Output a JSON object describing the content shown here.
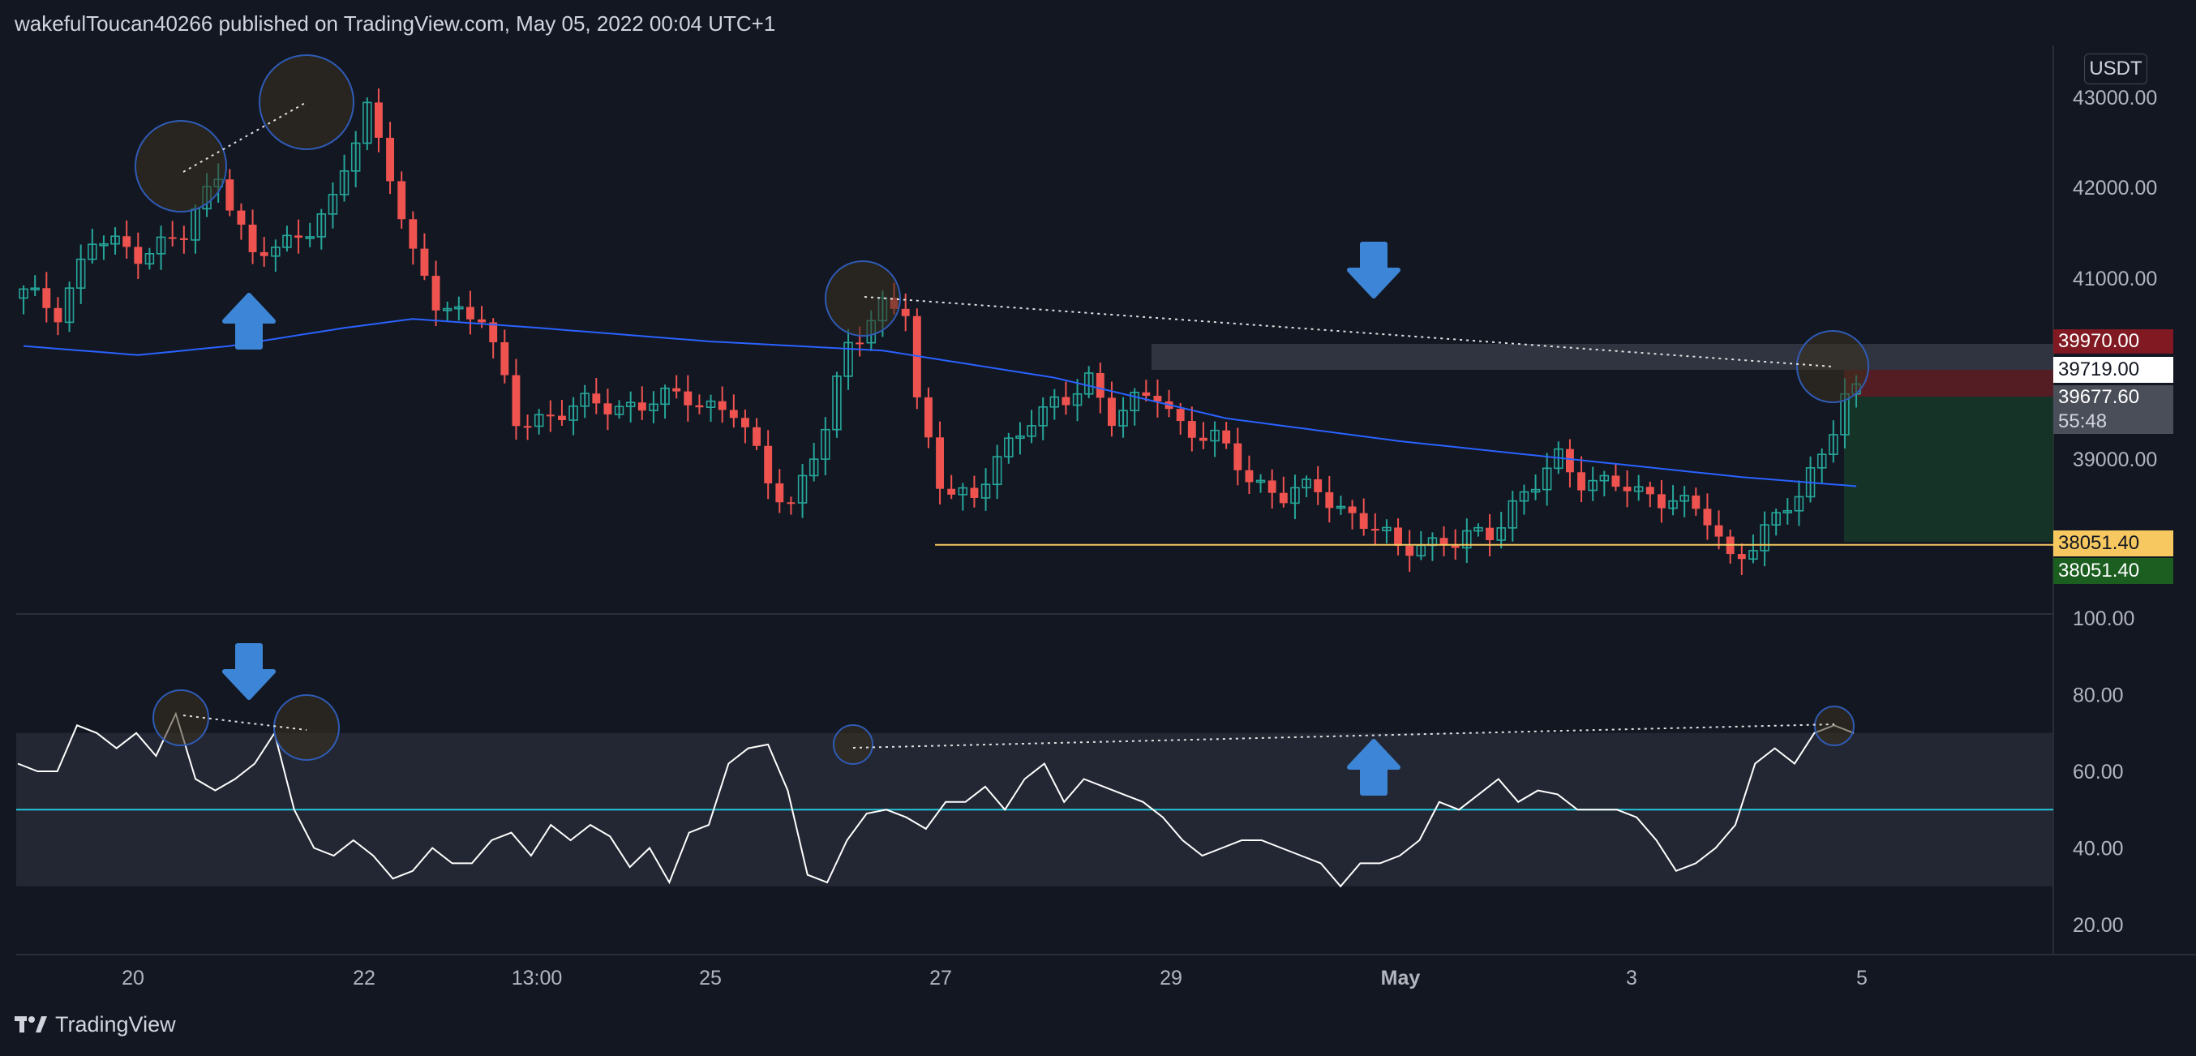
{
  "header": {
    "published_by": "wakefulToucan40266 published on TradingView.com, May 05, 2022 00:04 UTC+1"
  },
  "footer": {
    "brand": "TradingView"
  },
  "price_axis": {
    "unit": "USDT",
    "ticks": [
      "43000.00",
      "42000.00",
      "41000.00",
      "39000.00"
    ],
    "labels": {
      "stop": "39970.00",
      "entry": "39719.00",
      "current": "39677.60",
      "countdown": "55:48",
      "target_yellow": "38051.40",
      "target_green": "38051.40"
    }
  },
  "rsi_axis": {
    "ticks": [
      "100.00",
      "80.00",
      "60.00",
      "40.00",
      "20.00"
    ]
  },
  "time_axis": {
    "ticks": [
      "20",
      "22",
      "13:00",
      "25",
      "27",
      "29",
      "May",
      "3",
      "5"
    ]
  },
  "colors": {
    "background": "#131722",
    "up": "#26a69a",
    "down": "#ef5350",
    "ma": "#2962ff",
    "rsi": "#ffffff",
    "rsi_midline": "#26c6da",
    "arrows": "#3d85d6",
    "stop_zone": "#5b1e24",
    "target_zone": "#163628",
    "horizontal_support": "#f6c85f"
  },
  "chart_data": [
    {
      "type": "candlestick",
      "pair_unit": "USDT",
      "ylim": [
        37500,
        43500
      ],
      "yticks": [
        43000,
        42000,
        41000,
        39000
      ],
      "x_labels": [
        "20",
        "22",
        "13:00",
        "25",
        "27",
        "29",
        "May",
        "3",
        "5"
      ],
      "close_path": [
        [
          0,
          40820
        ],
        [
          3,
          40650
        ],
        [
          6,
          41400
        ],
        [
          10,
          41300
        ],
        [
          14,
          41450
        ],
        [
          17,
          42200
        ],
        [
          20,
          41200
        ],
        [
          23,
          41400
        ],
        [
          27,
          41800
        ],
        [
          30,
          42900
        ],
        [
          32,
          42200
        ],
        [
          34,
          41200
        ],
        [
          36,
          40700
        ],
        [
          40,
          40600
        ],
        [
          43,
          39400
        ],
        [
          46,
          39500
        ],
        [
          50,
          39600
        ],
        [
          54,
          39600
        ],
        [
          58,
          39700
        ],
        [
          62,
          39500
        ],
        [
          65,
          38800
        ],
        [
          67,
          38500
        ],
        [
          70,
          39300
        ],
        [
          72,
          40300
        ],
        [
          75,
          40700
        ],
        [
          77,
          40600
        ],
        [
          78,
          39600
        ],
        [
          80,
          38800
        ],
        [
          83,
          38500
        ],
        [
          85,
          39000
        ],
        [
          88,
          39500
        ],
        [
          91,
          39600
        ],
        [
          93,
          39900
        ],
        [
          95,
          39500
        ],
        [
          97,
          39600
        ],
        [
          99,
          39700
        ],
        [
          101,
          39400
        ],
        [
          104,
          39200
        ],
        [
          107,
          38800
        ],
        [
          110,
          38600
        ],
        [
          113,
          38650
        ],
        [
          117,
          38300
        ],
        [
          120,
          38000
        ],
        [
          122,
          38100
        ],
        [
          125,
          38050
        ],
        [
          128,
          38200
        ],
        [
          130,
          38500
        ],
        [
          132,
          38700
        ],
        [
          134,
          39000
        ],
        [
          136,
          38800
        ],
        [
          139,
          38700
        ],
        [
          141,
          38600
        ],
        [
          144,
          38600
        ],
        [
          147,
          38300
        ],
        [
          149,
          37900
        ],
        [
          151,
          38100
        ],
        [
          153,
          38300
        ],
        [
          155,
          38600
        ],
        [
          157,
          39100
        ],
        [
          159,
          39700
        ],
        [
          160,
          39690
        ]
      ],
      "ma_path": [
        [
          0,
          40250
        ],
        [
          10,
          40150
        ],
        [
          18,
          40250
        ],
        [
          28,
          40450
        ],
        [
          34,
          40550
        ],
        [
          45,
          40450
        ],
        [
          60,
          40300
        ],
        [
          75,
          40200
        ],
        [
          90,
          39900
        ],
        [
          105,
          39450
        ],
        [
          120,
          39200
        ],
        [
          135,
          39000
        ],
        [
          150,
          38800
        ],
        [
          155,
          38750
        ],
        [
          160,
          38700
        ]
      ],
      "horizontal_levels": {
        "support": 38051.4,
        "current": 39677.6,
        "stop": 39970.0,
        "entry": 39719.0
      },
      "countdown": "55:48"
    },
    {
      "type": "line",
      "indicator": "RSI",
      "ylim": [
        10,
        110
      ],
      "yticks": [
        100,
        80,
        60,
        40,
        20
      ],
      "band": [
        30,
        70
      ],
      "midline": 50,
      "values": [
        62,
        60,
        60,
        72,
        70,
        66,
        70,
        64,
        75,
        58,
        55,
        58,
        62,
        70,
        50,
        40,
        38,
        42,
        38,
        32,
        34,
        40,
        36,
        36,
        42,
        44,
        38,
        46,
        42,
        46,
        43,
        35,
        40,
        31,
        44,
        46,
        62,
        66,
        67,
        55,
        33,
        31,
        42,
        49,
        50,
        48,
        45,
        52,
        52,
        56,
        50,
        58,
        62,
        52,
        58,
        56,
        54,
        52,
        48,
        42,
        38,
        40,
        42,
        42,
        40,
        38,
        36,
        30,
        36,
        36,
        38,
        42,
        52,
        50,
        54,
        58,
        52,
        55,
        54,
        50,
        50,
        50,
        48,
        42,
        34,
        36,
        40,
        46,
        62,
        66,
        62,
        70,
        72,
        70
      ]
    }
  ]
}
